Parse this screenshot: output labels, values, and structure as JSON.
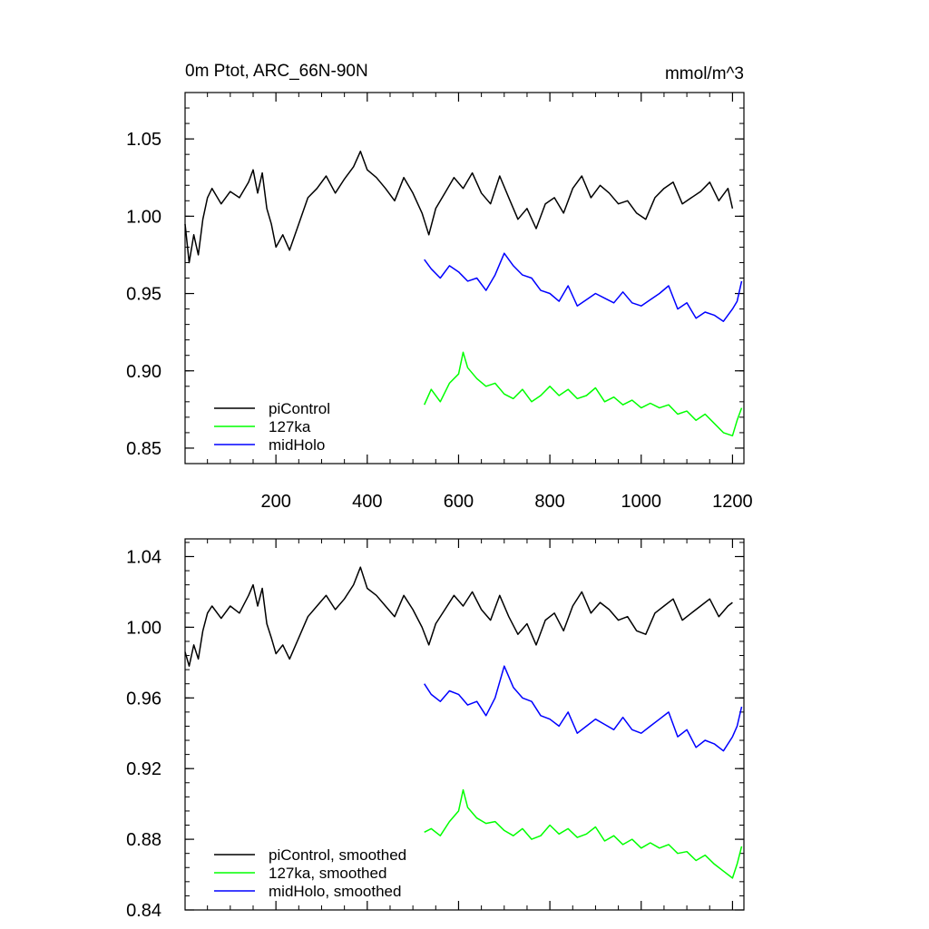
{
  "chart_data": [
    {
      "type": "line",
      "title_left": "0m Ptot, ARC_66N-90N",
      "title_right": "mmol/m^3",
      "xlabel": "",
      "ylabel": "",
      "xlim": [
        1,
        1225
      ],
      "ylim": [
        0.84,
        1.08
      ],
      "x_ticks": [
        200,
        400,
        600,
        800,
        1000,
        1200
      ],
      "x_tick_labels": [
        "200",
        "400",
        "600",
        "800",
        "1000",
        "1200"
      ],
      "y_ticks": [
        0.85,
        0.9,
        0.95,
        1.0,
        1.05
      ],
      "y_tick_labels": [
        "0.85",
        "0.90",
        "0.95",
        "1.00",
        "1.05"
      ],
      "legend_position": "bottom-left",
      "grid": false,
      "series": [
        {
          "name": "piControl",
          "color": "#000000",
          "x": [
            1,
            10,
            20,
            30,
            40,
            50,
            60,
            80,
            100,
            120,
            140,
            150,
            160,
            170,
            180,
            190,
            200,
            215,
            230,
            250,
            270,
            290,
            310,
            330,
            350,
            370,
            385,
            400,
            420,
            440,
            460,
            480,
            500,
            520,
            535,
            550,
            570,
            590,
            610,
            630,
            650,
            670,
            690,
            710,
            730,
            750,
            770,
            790,
            810,
            830,
            850,
            870,
            890,
            910,
            930,
            950,
            970,
            990,
            1010,
            1030,
            1050,
            1070,
            1090,
            1110,
            1130,
            1150,
            1170,
            1190,
            1200
          ],
          "values": [
            0.995,
            0.97,
            0.988,
            0.975,
            0.998,
            1.012,
            1.018,
            1.008,
            1.016,
            1.012,
            1.022,
            1.03,
            1.015,
            1.028,
            1.005,
            0.995,
            0.98,
            0.988,
            0.978,
            0.995,
            1.012,
            1.018,
            1.026,
            1.015,
            1.024,
            1.032,
            1.042,
            1.03,
            1.025,
            1.018,
            1.01,
            1.025,
            1.015,
            1.002,
            0.988,
            1.005,
            1.015,
            1.025,
            1.018,
            1.028,
            1.015,
            1.008,
            1.026,
            1.012,
            0.998,
            1.005,
            0.992,
            1.008,
            1.012,
            1.002,
            1.018,
            1.026,
            1.012,
            1.02,
            1.015,
            1.008,
            1.01,
            1.002,
            0.998,
            1.012,
            1.018,
            1.022,
            1.008,
            1.012,
            1.016,
            1.022,
            1.01,
            1.018,
            1.005
          ]
        },
        {
          "name": "127ka",
          "color": "#00ff00",
          "x": [
            525,
            540,
            560,
            580,
            600,
            610,
            620,
            640,
            660,
            680,
            700,
            720,
            740,
            760,
            780,
            800,
            820,
            840,
            860,
            880,
            900,
            920,
            940,
            960,
            980,
            1000,
            1020,
            1040,
            1060,
            1080,
            1100,
            1120,
            1140,
            1160,
            1180,
            1200,
            1210,
            1220
          ],
          "values": [
            0.878,
            0.888,
            0.88,
            0.892,
            0.898,
            0.912,
            0.902,
            0.895,
            0.89,
            0.892,
            0.885,
            0.882,
            0.888,
            0.88,
            0.884,
            0.89,
            0.884,
            0.888,
            0.882,
            0.884,
            0.889,
            0.88,
            0.883,
            0.878,
            0.881,
            0.876,
            0.879,
            0.876,
            0.878,
            0.872,
            0.874,
            0.868,
            0.872,
            0.866,
            0.86,
            0.858,
            0.868,
            0.876
          ]
        },
        {
          "name": "midHolo",
          "color": "#0000ff",
          "x": [
            525,
            540,
            560,
            580,
            600,
            620,
            640,
            660,
            680,
            700,
            720,
            740,
            760,
            780,
            800,
            820,
            840,
            860,
            880,
            900,
            920,
            940,
            960,
            980,
            1000,
            1020,
            1040,
            1060,
            1080,
            1100,
            1120,
            1140,
            1160,
            1180,
            1200,
            1210,
            1220
          ],
          "values": [
            0.972,
            0.966,
            0.96,
            0.968,
            0.964,
            0.958,
            0.96,
            0.952,
            0.962,
            0.976,
            0.968,
            0.962,
            0.96,
            0.952,
            0.95,
            0.945,
            0.955,
            0.942,
            0.946,
            0.95,
            0.947,
            0.944,
            0.951,
            0.944,
            0.942,
            0.946,
            0.95,
            0.955,
            0.94,
            0.944,
            0.934,
            0.938,
            0.936,
            0.932,
            0.94,
            0.945,
            0.958
          ]
        }
      ]
    },
    {
      "type": "line",
      "title_left": "",
      "title_right": "",
      "xlabel": "",
      "ylabel": "",
      "xlim": [
        1,
        1225
      ],
      "ylim": [
        0.84,
        1.05
      ],
      "x_ticks": [
        200,
        400,
        600,
        800,
        1000,
        1200
      ],
      "x_tick_labels": [],
      "y_ticks": [
        0.84,
        0.88,
        0.92,
        0.96,
        1.0,
        1.04
      ],
      "y_tick_labels": [
        "0.84",
        "0.88",
        "0.92",
        "0.96",
        "1.00",
        "1.04"
      ],
      "legend_position": "bottom-left",
      "grid": false,
      "series": [
        {
          "name": "piControl, smoothed",
          "color": "#000000",
          "x": [
            1,
            10,
            20,
            30,
            40,
            50,
            60,
            80,
            100,
            120,
            140,
            150,
            160,
            170,
            180,
            190,
            200,
            215,
            230,
            250,
            270,
            290,
            310,
            330,
            350,
            370,
            385,
            400,
            420,
            440,
            460,
            480,
            500,
            520,
            535,
            550,
            570,
            590,
            610,
            630,
            650,
            670,
            690,
            710,
            730,
            750,
            770,
            790,
            810,
            830,
            850,
            870,
            890,
            910,
            930,
            950,
            970,
            990,
            1010,
            1030,
            1050,
            1070,
            1090,
            1110,
            1130,
            1150,
            1170,
            1190,
            1200
          ],
          "values": [
            0.986,
            0.978,
            0.99,
            0.982,
            0.998,
            1.008,
            1.012,
            1.005,
            1.012,
            1.008,
            1.018,
            1.024,
            1.012,
            1.022,
            1.002,
            0.994,
            0.985,
            0.99,
            0.982,
            0.994,
            1.006,
            1.012,
            1.018,
            1.01,
            1.016,
            1.024,
            1.034,
            1.022,
            1.018,
            1.012,
            1.006,
            1.018,
            1.01,
            1.0,
            0.99,
            1.002,
            1.01,
            1.018,
            1.012,
            1.02,
            1.01,
            1.004,
            1.018,
            1.006,
            0.996,
            1.002,
            0.99,
            1.004,
            1.008,
            0.998,
            1.012,
            1.02,
            1.008,
            1.014,
            1.01,
            1.004,
            1.006,
            0.998,
            0.996,
            1.008,
            1.012,
            1.016,
            1.004,
            1.008,
            1.012,
            1.016,
            1.006,
            1.012,
            1.014
          ]
        },
        {
          "name": "127ka, smoothed",
          "color": "#00ff00",
          "x": [
            525,
            540,
            560,
            580,
            600,
            610,
            620,
            640,
            660,
            680,
            700,
            720,
            740,
            760,
            780,
            800,
            820,
            840,
            860,
            880,
            900,
            920,
            940,
            960,
            980,
            1000,
            1020,
            1040,
            1060,
            1080,
            1100,
            1120,
            1140,
            1160,
            1180,
            1200,
            1210,
            1220
          ],
          "values": [
            0.884,
            0.886,
            0.882,
            0.89,
            0.896,
            0.908,
            0.898,
            0.892,
            0.889,
            0.89,
            0.885,
            0.882,
            0.886,
            0.88,
            0.882,
            0.888,
            0.883,
            0.886,
            0.881,
            0.883,
            0.887,
            0.879,
            0.882,
            0.877,
            0.88,
            0.875,
            0.878,
            0.875,
            0.877,
            0.872,
            0.873,
            0.868,
            0.871,
            0.866,
            0.862,
            0.858,
            0.866,
            0.876
          ]
        },
        {
          "name": "midHolo, smoothed",
          "color": "#0000ff",
          "x": [
            525,
            540,
            560,
            580,
            600,
            620,
            640,
            660,
            680,
            700,
            720,
            740,
            760,
            780,
            800,
            820,
            840,
            860,
            880,
            900,
            920,
            940,
            960,
            980,
            1000,
            1020,
            1040,
            1060,
            1080,
            1100,
            1120,
            1140,
            1160,
            1180,
            1200,
            1210,
            1220
          ],
          "values": [
            0.968,
            0.962,
            0.958,
            0.964,
            0.962,
            0.956,
            0.958,
            0.95,
            0.96,
            0.978,
            0.966,
            0.96,
            0.958,
            0.95,
            0.948,
            0.944,
            0.952,
            0.94,
            0.944,
            0.948,
            0.945,
            0.942,
            0.949,
            0.942,
            0.94,
            0.944,
            0.948,
            0.952,
            0.938,
            0.942,
            0.932,
            0.936,
            0.934,
            0.93,
            0.938,
            0.944,
            0.955
          ]
        }
      ]
    }
  ]
}
